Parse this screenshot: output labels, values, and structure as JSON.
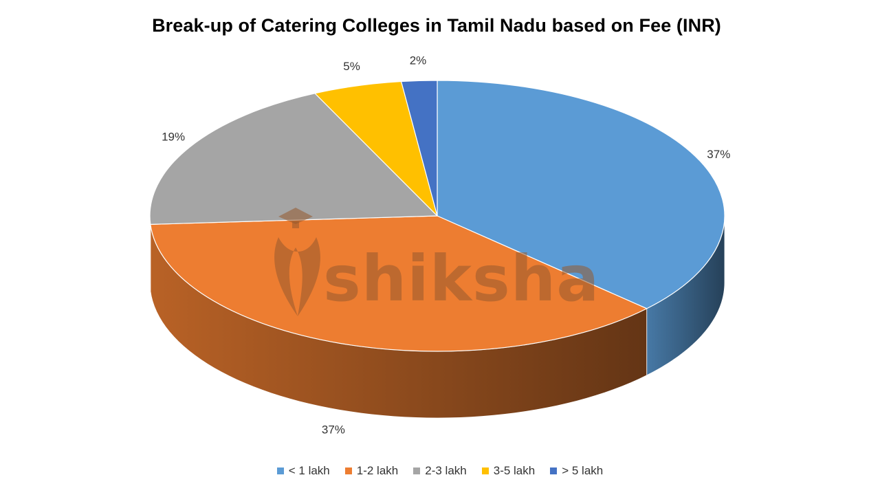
{
  "chart_data": {
    "type": "pie",
    "title": "Break-up of Catering Colleges in Tamil Nadu based on Fee (INR)",
    "categories": [
      "< 1 lakh",
      "1-2 lakh",
      "2-3 lakh",
      "3-5 lakh",
      "> 5 lakh"
    ],
    "values": [
      37,
      37,
      19,
      5,
      2
    ],
    "labels": [
      "37%",
      "37%",
      "19%",
      "5%",
      "2%"
    ],
    "colors": [
      "#5B9BD5",
      "#ED7D31",
      "#A5A5A5",
      "#FFC000",
      "#4472C4"
    ],
    "legend": "bottom",
    "style": "3d"
  },
  "watermark": {
    "text": "shiksha"
  }
}
